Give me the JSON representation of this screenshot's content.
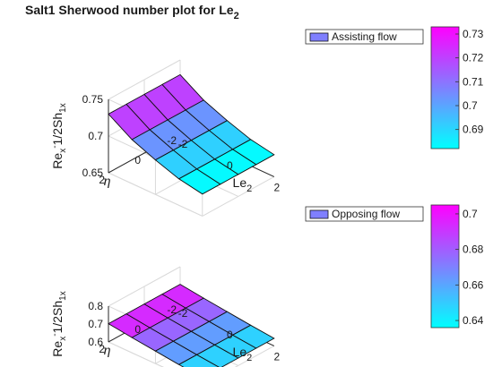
{
  "figure": {
    "title_main": "Salt1 Sherwood number plot for Le",
    "title_sub": "2"
  },
  "chart_data": [
    {
      "type": "surface",
      "title": "Salt1 Sherwood number plot for Le2",
      "legend": "Assisting flow",
      "legend_location": "top-right",
      "colormap": "cool",
      "grid": true,
      "x": [
        -2,
        -1,
        0,
        1,
        2
      ],
      "x_label": "Le2",
      "x_label_main": "Le",
      "x_label_sub": "2",
      "x_ticks": [
        -2,
        0,
        2
      ],
      "y": [
        -2,
        -1,
        0,
        1,
        2
      ],
      "y_label": "η",
      "y_ticks": [
        -2,
        0,
        2
      ],
      "z_label": "Rex^-1/2 Sh1x",
      "z_ticks": [
        0.65,
        0.7,
        0.75
      ],
      "z_tick_labels": [
        "0.65",
        "0.7",
        "0.75"
      ],
      "zlim": [
        0.65,
        0.75
      ],
      "z_surface_by_x": [
        0.73,
        0.71,
        0.697,
        0.686,
        0.68
      ],
      "colorbar_ticks": [
        0.69,
        0.7,
        0.71,
        0.72,
        0.73
      ],
      "colorbar_tick_labels": [
        "0.69",
        "0.7",
        "0.71",
        "0.72",
        "0.73"
      ],
      "colorbar_range": [
        0.682,
        0.733
      ]
    },
    {
      "type": "surface",
      "legend": "Opposing flow",
      "legend_location": "top-right",
      "colormap": "cool",
      "grid": true,
      "x": [
        -2,
        -1,
        0,
        1,
        2
      ],
      "x_label": "Le2",
      "x_label_main": "Le",
      "x_label_sub": "2",
      "x_ticks": [
        -2,
        0,
        2
      ],
      "y": [
        -2,
        -1,
        0,
        1,
        2
      ],
      "y_label": "η",
      "y_ticks": [
        -2,
        0,
        2
      ],
      "z_label": "Rex^-1/2 Sh1x",
      "z_ticks": [
        0.6,
        0.7,
        0.8
      ],
      "z_tick_labels": [
        "0.6",
        "0.7",
        "0.8"
      ],
      "zlim": [
        0.6,
        0.8
      ],
      "z_surface_by_x": [
        0.702,
        0.685,
        0.67,
        0.655,
        0.642
      ],
      "colorbar_ticks": [
        0.64,
        0.66,
        0.68,
        0.7
      ],
      "colorbar_tick_labels": [
        "0.64",
        "0.66",
        "0.68",
        "0.7"
      ],
      "colorbar_range": [
        0.636,
        0.705
      ]
    }
  ]
}
